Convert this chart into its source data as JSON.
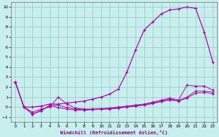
{
  "xlabel": "Windchill (Refroidissement éolien,°C)",
  "bg_color": "#c8eeed",
  "line_color": "#aa00aa",
  "grid_color": "#99cccc",
  "xlim": [
    -0.5,
    23.5
  ],
  "ylim": [
    -1.5,
    10.5
  ],
  "xticks": [
    0,
    1,
    2,
    3,
    4,
    5,
    6,
    7,
    8,
    9,
    10,
    11,
    12,
    13,
    14,
    15,
    16,
    17,
    18,
    19,
    20,
    21,
    22,
    23
  ],
  "yticks": [
    -1,
    0,
    1,
    2,
    3,
    4,
    5,
    6,
    7,
    8,
    9,
    10
  ],
  "main_x": [
    0,
    1,
    2,
    3,
    4,
    5,
    6,
    7,
    8,
    9,
    10,
    11,
    12,
    13,
    14,
    15,
    16,
    17,
    18,
    19,
    20,
    21,
    22,
    23
  ],
  "main_y": [
    2.5,
    0.0,
    0.0,
    0.1,
    0.3,
    0.3,
    0.4,
    0.5,
    0.6,
    0.8,
    1.0,
    1.3,
    1.8,
    3.5,
    5.7,
    7.7,
    8.5,
    9.3,
    9.7,
    9.8,
    10.0,
    9.85,
    7.5,
    4.5
  ],
  "c1_x": [
    0,
    1,
    2,
    3,
    4,
    5,
    6,
    7,
    8,
    9,
    10,
    11,
    12,
    13,
    14,
    15,
    16,
    17,
    18,
    19,
    20,
    21,
    22,
    23
  ],
  "c1_y": [
    2.5,
    0.0,
    -0.5,
    -0.2,
    0.0,
    1.0,
    0.3,
    -0.1,
    -0.2,
    -0.2,
    -0.15,
    -0.1,
    0.0,
    0.1,
    0.2,
    0.3,
    0.5,
    0.7,
    0.9,
    0.7,
    2.2,
    2.1,
    2.1,
    1.7
  ],
  "c2_x": [
    0,
    1,
    2,
    3,
    4,
    5,
    6,
    7,
    8,
    9,
    10,
    11,
    12,
    13,
    14,
    15,
    16,
    17,
    18,
    19,
    20,
    21,
    22,
    23
  ],
  "c2_y": [
    2.5,
    0.0,
    -0.7,
    -0.3,
    0.1,
    0.2,
    -0.05,
    -0.2,
    -0.25,
    -0.2,
    -0.2,
    -0.15,
    -0.05,
    0.05,
    0.15,
    0.25,
    0.4,
    0.6,
    0.8,
    0.65,
    1.0,
    1.6,
    1.6,
    1.5
  ],
  "c3_x": [
    0,
    1,
    2,
    3,
    4,
    5,
    6,
    7,
    8,
    9,
    10,
    11,
    12,
    13,
    14,
    15,
    16,
    17,
    18,
    19,
    20,
    21,
    22,
    23
  ],
  "c3_y": [
    2.5,
    0.0,
    -0.7,
    -0.4,
    0.2,
    -0.05,
    -0.2,
    -0.3,
    -0.3,
    -0.25,
    -0.2,
    -0.2,
    -0.1,
    0.0,
    0.1,
    0.2,
    0.35,
    0.55,
    0.7,
    0.6,
    0.9,
    1.4,
    1.45,
    1.35
  ]
}
